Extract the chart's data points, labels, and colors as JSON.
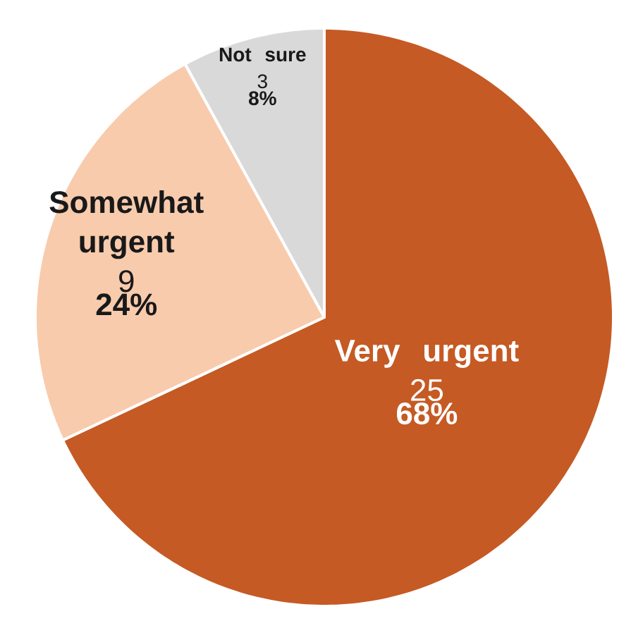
{
  "chart_data": {
    "type": "pie",
    "categories": [
      "Very urgent",
      "Somewhat urgent",
      "Not sure"
    ],
    "values": [
      68,
      24,
      8
    ],
    "colors": [
      "#c55a24",
      "#f8cbad",
      "#d9d9d9"
    ],
    "value_labels": [
      "68%",
      "24%",
      "8%"
    ],
    "annotations": [
      "25",
      "9",
      "3"
    ]
  }
}
